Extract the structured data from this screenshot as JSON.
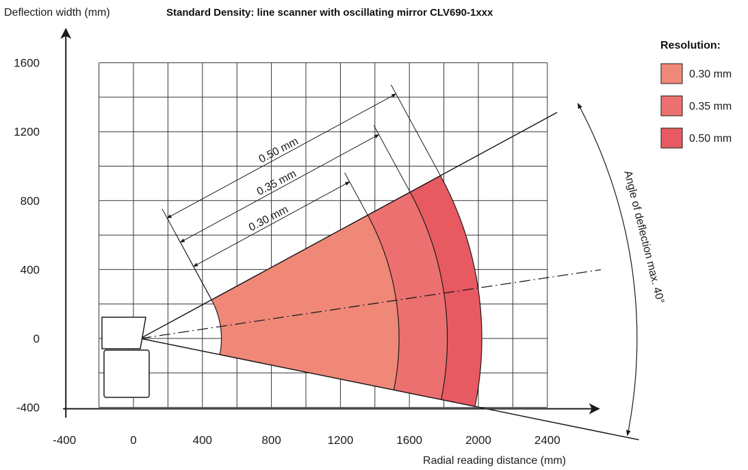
{
  "chart_data": {
    "type": "area",
    "title": "Standard Density: line scanner with oscillating mirror CLV690-1xxx",
    "xlabel": "Radial reading distance (mm)",
    "ylabel": "Deflection width (mm)",
    "xlim": [
      -400,
      2600
    ],
    "ylim": [
      -400,
      1600
    ],
    "x_ticks": [
      -400,
      0,
      400,
      800,
      1200,
      1600,
      2000,
      2400
    ],
    "y_ticks": [
      -400,
      0,
      400,
      800,
      1200,
      1600
    ],
    "grid": true,
    "legend_title": "Resolution:",
    "legend_position": "top-right",
    "scanner_origin": [
      40,
      0
    ],
    "deflection_angle_deg": 40,
    "angle_annotation": "Angle of deflection max. 40°",
    "zones_min_radius": 470,
    "series": [
      {
        "name": "0.30 mm",
        "max_radius": 1500,
        "color": "#f08878"
      },
      {
        "name": "0.35 mm",
        "max_radius": 1780,
        "color": "#ec7070"
      },
      {
        "name": "0.50 mm",
        "max_radius": 1980,
        "color": "#e85a62"
      }
    ],
    "dimension_labels": [
      "0.50 mm",
      "0.35 mm",
      "0.30 mm"
    ]
  }
}
